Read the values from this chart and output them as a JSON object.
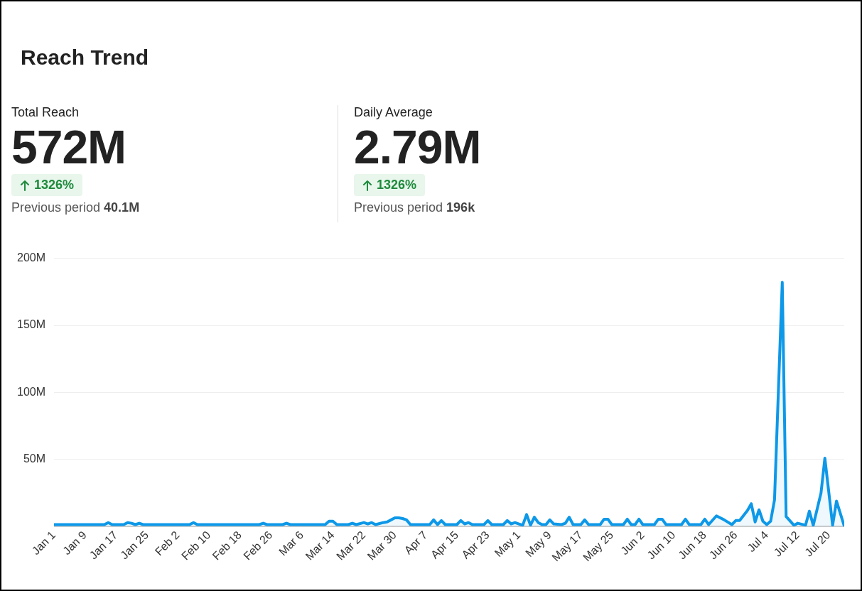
{
  "chart_data": {
    "type": "area",
    "title": "Reach Trend",
    "annotations": [
      "Total Reach",
      "572M",
      "1326%",
      "Previous period",
      "40.1M",
      "Daily Average",
      "2.79M",
      "1326%",
      "Previous period",
      "196k"
    ],
    "x": [
      "--01-01",
      "--01-06",
      "--01-11",
      "--01-14",
      "--01-15",
      "--01-16",
      "--01-19",
      "--01-20",
      "--01-21",
      "--01-22",
      "--01-23",
      "--01-24",
      "--01-31",
      "--02-05",
      "--02-06",
      "--02-07",
      "--02-15",
      "--02-23",
      "--02-24",
      "--02-25",
      "--03-01",
      "--03-02",
      "--03-03",
      "--03-12",
      "--03-13",
      "--03-14",
      "--03-15",
      "--03-18",
      "--03-19",
      "--03-20",
      "--03-22",
      "--03-23",
      "--03-24",
      "--03-25",
      "--03-27",
      "--03-28",
      "--03-29",
      "--03-30",
      "--03-31",
      "--04-01",
      "--04-02",
      "--04-03",
      "--04-08",
      "--04-09",
      "--04-10",
      "--04-11",
      "--04-12",
      "--04-15",
      "--04-16",
      "--04-17",
      "--04-18",
      "--04-19",
      "--04-22",
      "--04-23",
      "--04-24",
      "--04-27",
      "--04-28",
      "--04-29",
      "--04-30",
      "--05-01",
      "--05-02",
      "--05-03",
      "--05-04",
      "--05-05",
      "--05-06",
      "--05-07",
      "--05-08",
      "--05-09",
      "--05-10",
      "--05-12",
      "--05-13",
      "--05-14",
      "--05-15",
      "--05-17",
      "--05-18",
      "--05-19",
      "--05-22",
      "--05-23",
      "--05-24",
      "--05-25",
      "--05-28",
      "--05-29",
      "--05-30",
      "--05-31",
      "--06-01",
      "--06-02",
      "--06-05",
      "--06-06",
      "--06-07",
      "--06-08",
      "--06-12",
      "--06-13",
      "--06-14",
      "--06-17",
      "--06-18",
      "--06-19",
      "--06-21",
      "--06-23",
      "--06-25",
      "--06-26",
      "--06-27",
      "--06-29",
      "--06-30",
      "--07-01",
      "--07-02",
      "--07-03",
      "--07-04",
      "--07-05",
      "--07-06",
      "--07-08",
      "--07-09",
      "--07-11",
      "--07-12",
      "--07-14",
      "--07-15",
      "--07-16",
      "--07-18",
      "--07-19",
      "--07-21",
      "--07-22",
      "--07-24"
    ],
    "series": [
      {
        "color": "#0d98e8",
        "values": [
          1.5,
          1.5,
          1.5,
          1.5,
          3,
          1.5,
          1.5,
          3,
          2.5,
          1.5,
          2.5,
          1.5,
          1.5,
          1.5,
          3,
          1.5,
          1.5,
          1.5,
          2.5,
          1.5,
          1.5,
          2.5,
          1.5,
          1.5,
          4,
          4,
          1.5,
          1.5,
          2.5,
          1.5,
          3,
          2,
          3,
          1.5,
          3,
          3.5,
          5,
          6.5,
          6.5,
          6,
          5,
          1.5,
          1.5,
          5,
          1.5,
          4.5,
          1.5,
          1.5,
          4.5,
          2,
          3,
          1.5,
          1.5,
          4.5,
          1.5,
          1.5,
          4.5,
          2,
          3,
          2,
          1,
          9,
          1,
          7,
          3,
          1.5,
          1.5,
          5,
          2,
          1.5,
          2.5,
          7,
          1.5,
          1.5,
          5,
          1.5,
          1.5,
          5.5,
          5.5,
          1.5,
          1.5,
          5.5,
          1.5,
          1.5,
          5.5,
          1.5,
          1.5,
          5.5,
          5.5,
          1.5,
          1.5,
          5.5,
          1.5,
          1.5,
          5.5,
          1.5,
          8,
          5,
          1.5,
          4.5,
          4.5,
          12,
          17,
          3.5,
          12.5,
          4,
          1.5,
          4,
          20,
          182,
          7.5,
          1,
          2.5,
          1,
          11.5,
          1,
          25,
          51,
          1,
          19,
          0.5
        ]
      }
    ],
    "xlim": [
      "--01-01",
      "--07-24"
    ],
    "xticks": [
      {
        "value": "--01-01",
        "label": "Jan 1"
      },
      {
        "value": "--01-09",
        "label": "Jan 9"
      },
      {
        "value": "--01-17",
        "label": "Jan 17"
      },
      {
        "value": "--01-25",
        "label": "Jan 25"
      },
      {
        "value": "--02-02",
        "label": "Feb 2"
      },
      {
        "value": "--02-10",
        "label": "Feb 10"
      },
      {
        "value": "--02-18",
        "label": "Feb 18"
      },
      {
        "value": "--02-26",
        "label": "Feb 26"
      },
      {
        "value": "--03-06",
        "label": "Mar 6"
      },
      {
        "value": "--03-14",
        "label": "Mar 14"
      },
      {
        "value": "--03-22",
        "label": "Mar 22"
      },
      {
        "value": "--03-30",
        "label": "Mar 30"
      },
      {
        "value": "--04-07",
        "label": "Apr 7"
      },
      {
        "value": "--04-15",
        "label": "Apr 15"
      },
      {
        "value": "--04-23",
        "label": "Apr 23"
      },
      {
        "value": "--05-01",
        "label": "May 1"
      },
      {
        "value": "--05-09",
        "label": "May 9"
      },
      {
        "value": "--05-17",
        "label": "May 17"
      },
      {
        "value": "--05-25",
        "label": "May 25"
      },
      {
        "value": "--06-02",
        "label": "Jun 2"
      },
      {
        "value": "--06-10",
        "label": "Jun 10"
      },
      {
        "value": "--06-18",
        "label": "Jun 18"
      },
      {
        "value": "--06-26",
        "label": "Jun 26"
      },
      {
        "value": "--07-04",
        "label": "Jul 4"
      },
      {
        "value": "--07-12",
        "label": "Jul 12"
      },
      {
        "value": "--07-20",
        "label": "Jul 20"
      }
    ],
    "ylim": [
      0,
      200
    ],
    "yticks": [
      {
        "value": 0,
        "label": null
      },
      {
        "value": 50,
        "label": "50M"
      },
      {
        "value": 100,
        "label": "100M"
      },
      {
        "value": 150,
        "label": "150M"
      },
      {
        "value": 200,
        "label": "200M"
      }
    ],
    "grid": "y",
    "legend": false,
    "marker": "none",
    "line_style": "solid"
  }
}
